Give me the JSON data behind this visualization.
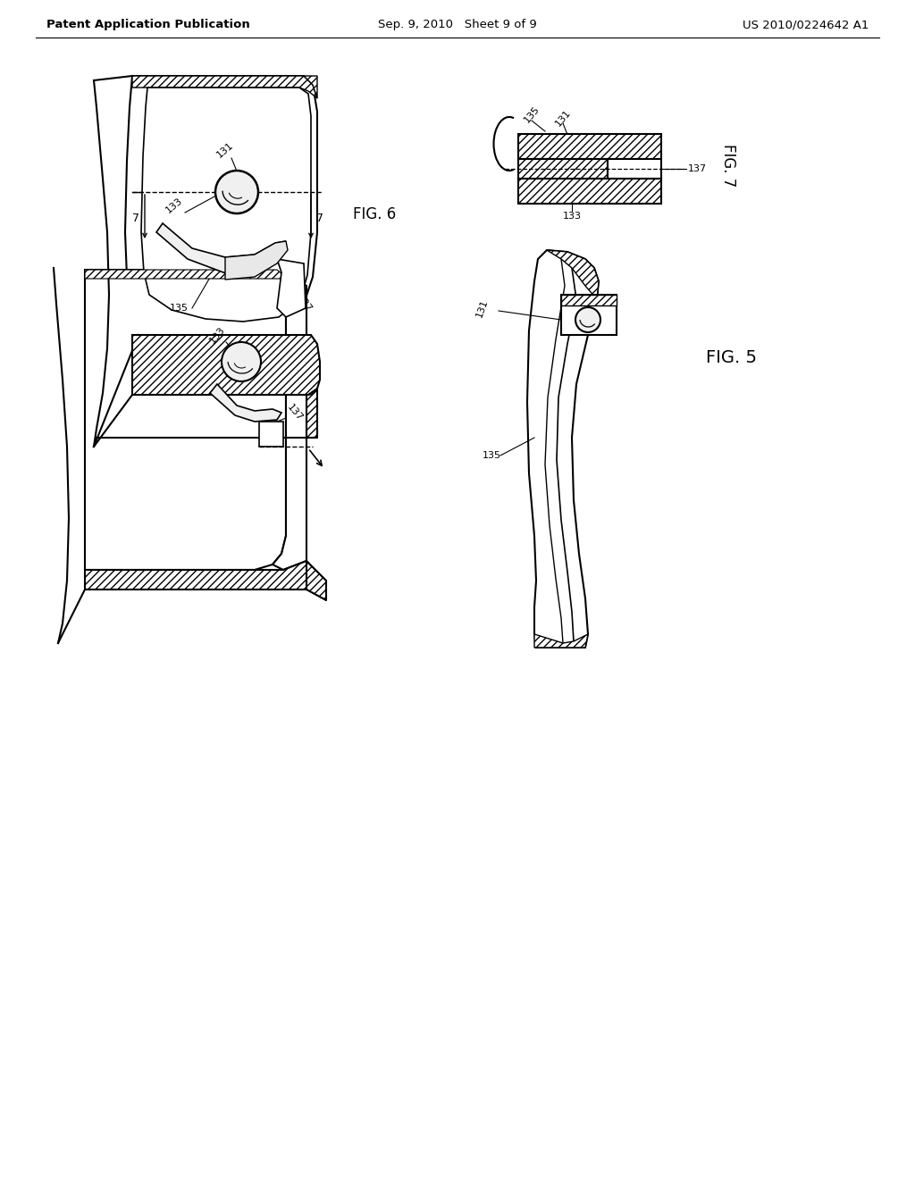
{
  "header_left": "Patent Application Publication",
  "header_center": "Sep. 9, 2010   Sheet 9 of 9",
  "header_right": "US 2010/0224642 A1",
  "fig5_label": "FIG. 5",
  "fig6_label": "FIG. 6",
  "fig7_label": "FIG. 7",
  "bg_color": "#ffffff"
}
